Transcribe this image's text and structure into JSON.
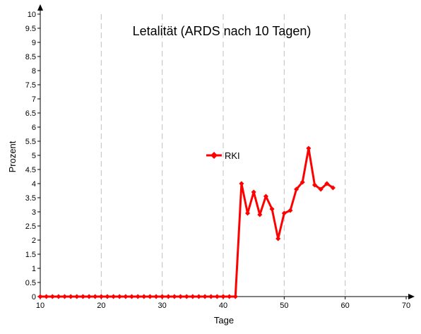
{
  "chart_data": {
    "type": "line",
    "title": "Letalität (ARDS nach 10 Tagen)",
    "xlabel": "Tage",
    "ylabel": "Prozent",
    "xlim": [
      10,
      70
    ],
    "ylim": [
      0,
      10
    ],
    "xticks": [
      10,
      20,
      30,
      40,
      50,
      60,
      70
    ],
    "yticks": [
      "0",
      "0.5",
      "1",
      "1.5",
      "2",
      "2.5",
      "3",
      "3.5",
      "4",
      "4.5",
      "5",
      "5.5",
      "6",
      "6.5",
      "7",
      "7.5",
      "8",
      "8.5",
      "9",
      "9.5",
      "10"
    ],
    "grid": "vertical dashed",
    "legend_position": "center",
    "series": [
      {
        "name": "RKI",
        "color": "#ff0000",
        "x": [
          10,
          11,
          12,
          13,
          14,
          15,
          16,
          17,
          18,
          19,
          20,
          21,
          22,
          23,
          24,
          25,
          26,
          27,
          28,
          29,
          30,
          31,
          32,
          33,
          34,
          35,
          36,
          37,
          38,
          39,
          40,
          41,
          42,
          43,
          44,
          45,
          46,
          47,
          48,
          49,
          50,
          51,
          52,
          53,
          54,
          55,
          56,
          57,
          58
        ],
        "y": [
          0,
          0,
          0,
          0,
          0,
          0,
          0,
          0,
          0,
          0,
          0,
          0,
          0,
          0,
          0,
          0,
          0,
          0,
          0,
          0,
          0,
          0,
          0,
          0,
          0,
          0,
          0,
          0,
          0,
          0,
          0,
          0,
          0,
          4.0,
          2.95,
          3.7,
          2.9,
          3.55,
          3.1,
          2.05,
          2.95,
          3.05,
          3.8,
          4.05,
          5.25,
          3.95,
          3.8,
          4.0,
          3.85
        ]
      }
    ]
  }
}
